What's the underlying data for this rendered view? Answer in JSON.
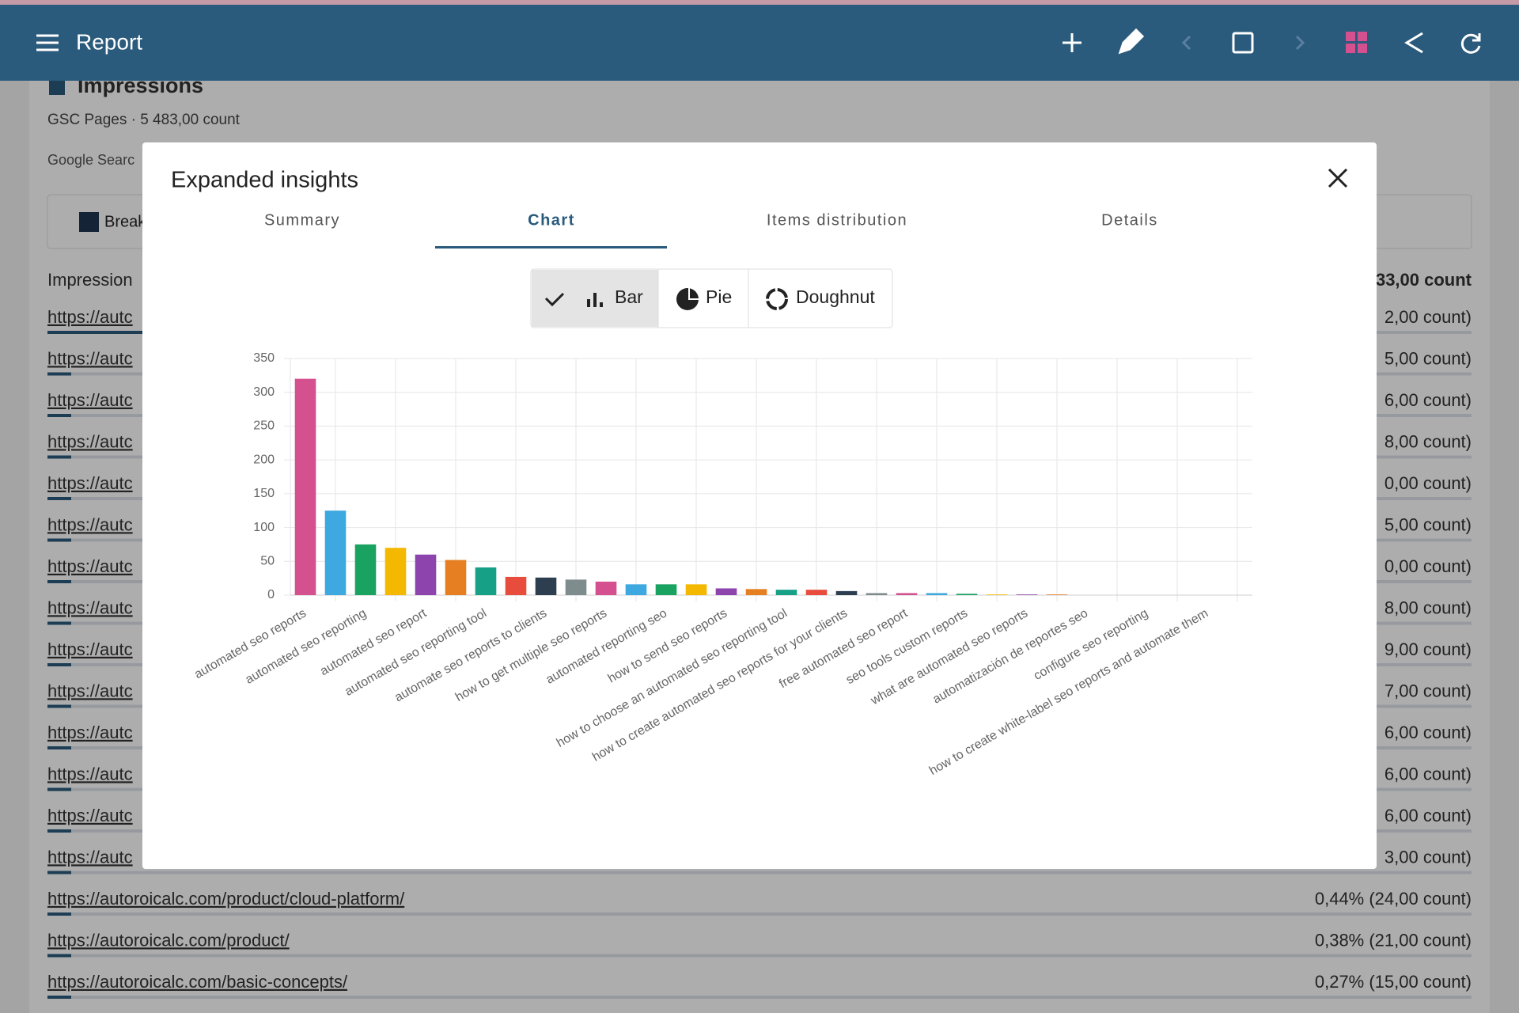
{
  "header": {
    "title": "Report"
  },
  "card": {
    "title": "Impressions",
    "subtitle": "GSC Pages · 5 483,00 count",
    "source": "Google Searc",
    "breakdown": "Break",
    "list_header": "Impression",
    "list_total": "33,00 count",
    "rows": [
      {
        "url": "https://autc",
        "value": "2,00 count)"
      },
      {
        "url": "https://autc",
        "value": "5,00 count)"
      },
      {
        "url": "https://autc",
        "value": "6,00 count)"
      },
      {
        "url": "https://autc",
        "value": "8,00 count)"
      },
      {
        "url": "https://autc",
        "value": "0,00 count)"
      },
      {
        "url": "https://autc",
        "value": "5,00 count)"
      },
      {
        "url": "https://autc",
        "value": "0,00 count)"
      },
      {
        "url": "https://autc",
        "value": "8,00 count)"
      },
      {
        "url": "https://autc",
        "value": "9,00 count)"
      },
      {
        "url": "https://autc",
        "value": "7,00 count)"
      },
      {
        "url": "https://autc",
        "value": "6,00 count)"
      },
      {
        "url": "https://autc",
        "value": "6,00 count)"
      },
      {
        "url": "https://autc",
        "value": "6,00 count)"
      },
      {
        "url": "https://autc",
        "value": "3,00 count)"
      },
      {
        "url": "https://autoroicalc.com/product/cloud-platform/",
        "value": "0,44% (24,00 count)"
      },
      {
        "url": "https://autoroicalc.com/product/",
        "value": "0,38% (21,00 count)"
      },
      {
        "url": "https://autoroicalc.com/basic-concepts/",
        "value": "0,27% (15,00 count)"
      }
    ]
  },
  "modal": {
    "title": "Expanded insights",
    "tabs": [
      "Summary",
      "Chart",
      "Items distribution",
      "Details"
    ],
    "chart_types": [
      "Bar",
      "Pie",
      "Doughnut"
    ]
  },
  "chart_data": {
    "type": "bar",
    "categories": [
      "automated seo reports",
      null,
      "automated seo reporting",
      null,
      "automated seo report",
      null,
      "automated seo reporting tool",
      null,
      "automate seo reports to clients",
      null,
      "how to get multiple seo reports",
      null,
      "automated reporting seo",
      null,
      "how to send seo reports",
      null,
      "how to choose an automated seo reporting tool",
      null,
      "how to create automated seo reports for your clients",
      null,
      "free automated seo report",
      null,
      "seo tools custom reports",
      null,
      "what are automated seo reports",
      null,
      "automatización de reportes seo",
      null,
      "configure seo reporting",
      null,
      "how to create white-label seo reports and automate them",
      null
    ],
    "values": [
      320,
      125,
      75,
      70,
      60,
      52,
      41,
      27,
      26,
      23,
      20,
      16,
      16,
      16,
      10,
      9,
      8,
      8,
      6,
      3,
      3,
      3,
      2,
      1,
      1,
      1,
      0,
      0,
      0,
      0,
      0,
      0
    ],
    "colors": [
      "#d4508f",
      "#3ea8e0",
      "#1aa260",
      "#f5b800",
      "#8e44ad",
      "#e67e22",
      "#16a085",
      "#e74c3c",
      "#2c3e50",
      "#7f8c8d"
    ],
    "ylim": [
      0,
      350
    ],
    "yticks": [
      0,
      50,
      100,
      150,
      200,
      250,
      300,
      350
    ],
    "grid": true
  }
}
